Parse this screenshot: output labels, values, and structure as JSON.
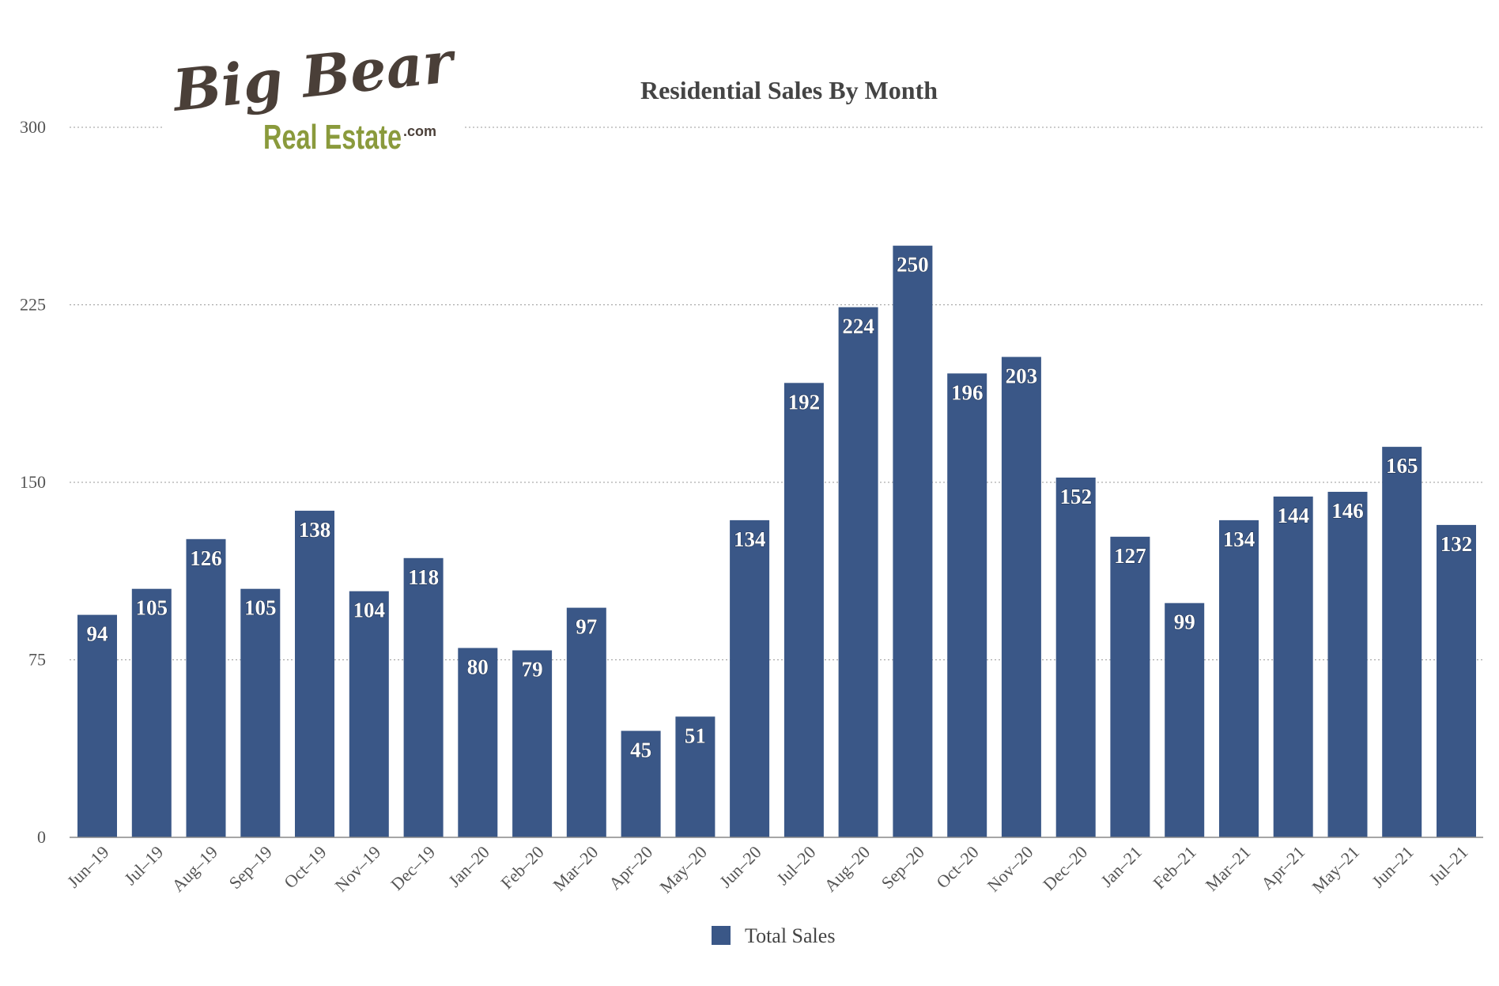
{
  "logo": {
    "line1": "Big Bear",
    "line2": "Real Estate",
    "suffix": ".com"
  },
  "colors": {
    "bar": "#3a5787",
    "grid": "#9a9a9a",
    "axis": "#888888",
    "title": "#444444",
    "data_label": "#ffffff",
    "logo_brown": "#4a3f38",
    "logo_green": "#8a9a3c"
  },
  "chart_data": {
    "type": "bar",
    "title": "Residential Sales By Month",
    "xlabel": "",
    "ylabel": "",
    "ylim": [
      0,
      300
    ],
    "yticks": [
      0,
      75,
      150,
      225,
      300
    ],
    "grid": true,
    "legend_position": "bottom-center",
    "categories": [
      "Jun–19",
      "Jul–19",
      "Aug–19",
      "Sep–19",
      "Oct–19",
      "Nov–19",
      "Dec–19",
      "Jan–20",
      "Feb–20",
      "Mar–20",
      "Apr–20",
      "May–20",
      "Jun–20",
      "Jul–20",
      "Aug–20",
      "Sep–20",
      "Oct–20",
      "Nov–20",
      "Dec–20",
      "Jan–21",
      "Feb–21",
      "Mar–21",
      "Apr–21",
      "May–21",
      "Jun–21",
      "Jul–21"
    ],
    "series": [
      {
        "name": "Total Sales",
        "values": [
          94,
          105,
          126,
          105,
          138,
          104,
          118,
          80,
          79,
          97,
          45,
          51,
          134,
          192,
          224,
          250,
          196,
          203,
          152,
          127,
          99,
          134,
          144,
          146,
          165,
          132
        ]
      }
    ]
  }
}
